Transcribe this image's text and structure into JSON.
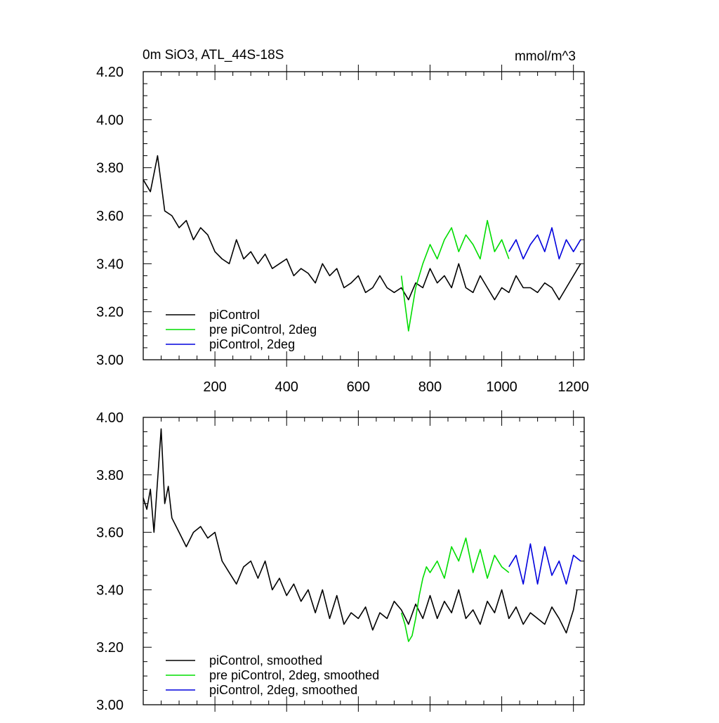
{
  "chart_data": [
    {
      "type": "line",
      "title": "0m SiO3, ATL_44S-18S",
      "units": "mmol/m^3",
      "xlim": [
        0,
        1230
      ],
      "ylim": [
        3.0,
        4.2
      ],
      "x_ticks": [
        200,
        400,
        600,
        800,
        1000,
        1200
      ],
      "x_tick_labels": [
        "200",
        "400",
        "600",
        "800",
        "1000",
        "1200"
      ],
      "y_ticks": [
        3.0,
        3.2,
        3.4,
        3.6,
        3.8,
        4.0,
        4.2
      ],
      "y_tick_labels": [
        "3.00",
        "3.20",
        "3.40",
        "3.60",
        "3.80",
        "4.00",
        "4.20"
      ],
      "legend_position": "bottom-left",
      "grid": false,
      "series": [
        {
          "name": "piControl",
          "color": "#000000",
          "x": [
            0,
            20,
            40,
            60,
            80,
            100,
            120,
            140,
            160,
            180,
            200,
            220,
            240,
            260,
            280,
            300,
            320,
            340,
            360,
            380,
            400,
            420,
            440,
            460,
            480,
            500,
            520,
            540,
            560,
            580,
            600,
            620,
            640,
            660,
            680,
            700,
            720,
            740,
            760,
            780,
            800,
            820,
            840,
            860,
            880,
            900,
            920,
            940,
            960,
            980,
            1000,
            1020,
            1040,
            1060,
            1080,
            1100,
            1120,
            1140,
            1160,
            1180,
            1200,
            1220
          ],
          "y": [
            3.75,
            3.7,
            3.85,
            3.62,
            3.6,
            3.55,
            3.58,
            3.5,
            3.55,
            3.52,
            3.45,
            3.42,
            3.4,
            3.5,
            3.42,
            3.45,
            3.4,
            3.44,
            3.38,
            3.4,
            3.42,
            3.35,
            3.38,
            3.36,
            3.32,
            3.4,
            3.35,
            3.38,
            3.3,
            3.32,
            3.35,
            3.28,
            3.3,
            3.35,
            3.3,
            3.28,
            3.3,
            3.25,
            3.32,
            3.3,
            3.38,
            3.32,
            3.35,
            3.3,
            3.4,
            3.3,
            3.28,
            3.35,
            3.3,
            3.25,
            3.3,
            3.28,
            3.35,
            3.3,
            3.3,
            3.28,
            3.32,
            3.3,
            3.25,
            3.3,
            3.35,
            3.4
          ]
        },
        {
          "name": "pre piControl, 2deg",
          "color": "#00dd00",
          "x": [
            720,
            740,
            760,
            780,
            800,
            820,
            840,
            860,
            880,
            900,
            920,
            940,
            960,
            980,
            1000,
            1020
          ],
          "y": [
            3.35,
            3.12,
            3.3,
            3.4,
            3.48,
            3.42,
            3.5,
            3.55,
            3.45,
            3.52,
            3.48,
            3.42,
            3.58,
            3.45,
            3.5,
            3.42
          ]
        },
        {
          "name": "piControl, 2deg",
          "color": "#0000dd",
          "x": [
            1020,
            1040,
            1060,
            1080,
            1100,
            1120,
            1140,
            1160,
            1180,
            1200,
            1220
          ],
          "y": [
            3.45,
            3.5,
            3.42,
            3.48,
            3.52,
            3.45,
            3.55,
            3.42,
            3.5,
            3.45,
            3.5
          ]
        }
      ]
    },
    {
      "type": "line",
      "title": "",
      "xlim": [
        0,
        1230
      ],
      "ylim": [
        3.0,
        4.0
      ],
      "y_ticks": [
        3.0,
        3.2,
        3.4,
        3.6,
        3.8,
        4.0
      ],
      "y_tick_labels": [
        "3.00",
        "3.20",
        "3.40",
        "3.60",
        "3.80",
        "4.00"
      ],
      "legend_position": "bottom-left",
      "grid": false,
      "series": [
        {
          "name": "piControl, smoothed",
          "color": "#000000",
          "x": [
            0,
            10,
            20,
            30,
            40,
            50,
            60,
            70,
            80,
            100,
            120,
            140,
            160,
            180,
            200,
            220,
            240,
            260,
            280,
            300,
            320,
            340,
            360,
            380,
            400,
            420,
            440,
            460,
            480,
            500,
            520,
            540,
            560,
            580,
            600,
            620,
            640,
            660,
            680,
            700,
            720,
            740,
            760,
            780,
            800,
            820,
            840,
            860,
            880,
            900,
            920,
            940,
            960,
            980,
            1000,
            1020,
            1040,
            1060,
            1080,
            1100,
            1120,
            1140,
            1160,
            1180,
            1200,
            1210
          ],
          "y": [
            3.72,
            3.68,
            3.75,
            3.6,
            3.78,
            3.96,
            3.7,
            3.76,
            3.65,
            3.6,
            3.55,
            3.6,
            3.62,
            3.58,
            3.6,
            3.5,
            3.46,
            3.42,
            3.48,
            3.5,
            3.44,
            3.5,
            3.4,
            3.44,
            3.38,
            3.42,
            3.36,
            3.4,
            3.32,
            3.4,
            3.3,
            3.38,
            3.28,
            3.32,
            3.3,
            3.34,
            3.26,
            3.32,
            3.3,
            3.36,
            3.33,
            3.28,
            3.35,
            3.3,
            3.38,
            3.3,
            3.36,
            3.32,
            3.4,
            3.3,
            3.33,
            3.28,
            3.36,
            3.32,
            3.4,
            3.3,
            3.34,
            3.28,
            3.32,
            3.3,
            3.28,
            3.34,
            3.3,
            3.25,
            3.33,
            3.4
          ]
        },
        {
          "name": "pre piControl, 2deg, smoothed",
          "color": "#00dd00",
          "x": [
            720,
            730,
            740,
            750,
            760,
            770,
            780,
            790,
            800,
            820,
            840,
            860,
            880,
            900,
            920,
            940,
            960,
            980,
            1000,
            1020
          ],
          "y": [
            3.32,
            3.28,
            3.22,
            3.24,
            3.3,
            3.38,
            3.44,
            3.48,
            3.46,
            3.5,
            3.44,
            3.55,
            3.5,
            3.58,
            3.46,
            3.54,
            3.44,
            3.52,
            3.48,
            3.46
          ]
        },
        {
          "name": "piControl, 2deg, smoothed",
          "color": "#0000dd",
          "x": [
            1020,
            1040,
            1060,
            1080,
            1100,
            1120,
            1140,
            1160,
            1180,
            1200,
            1220
          ],
          "y": [
            3.48,
            3.52,
            3.42,
            3.56,
            3.42,
            3.55,
            3.45,
            3.5,
            3.42,
            3.52,
            3.5
          ]
        }
      ]
    }
  ]
}
